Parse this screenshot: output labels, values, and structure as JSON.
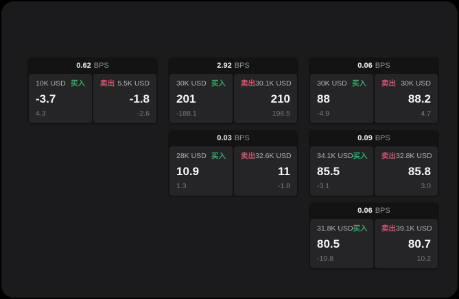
{
  "colors": {
    "background": "#000000",
    "panel": "#1b1b1d",
    "card": "#131314",
    "side_panel": "#252528",
    "buy_green": "#3aa568",
    "sell_red": "#c9566b",
    "value_white": "#f5f5f6",
    "label_gray": "#b2b2b5",
    "delta_gray": "#7b7b7f"
  },
  "cards": [
    {
      "bps": "0.62",
      "bps_unit": "BPS",
      "buy": {
        "side": "买入",
        "amount": "10K USD",
        "value": "-3.7",
        "delta": "4.3"
      },
      "sell": {
        "side": "卖出",
        "amount": "5.5K USD",
        "value": "-1.8",
        "delta": "-2.6"
      }
    },
    {
      "bps": "2.92",
      "bps_unit": "BPS",
      "buy": {
        "side": "买入",
        "amount": "30K USD",
        "value": "201",
        "delta": "-188.1"
      },
      "sell": {
        "side": "卖出",
        "amount": "30.1K USD",
        "value": "210",
        "delta": "196.5"
      }
    },
    {
      "bps": "0.06",
      "bps_unit": "BPS",
      "buy": {
        "side": "买入",
        "amount": "30K USD",
        "value": "88",
        "delta": "-4.9"
      },
      "sell": {
        "side": "卖出",
        "amount": "30K USD",
        "value": "88.2",
        "delta": "4.7"
      }
    },
    {
      "bps": "0.03",
      "bps_unit": "BPS",
      "buy": {
        "side": "买入",
        "amount": "28K USD",
        "value": "10.9",
        "delta": "1.3"
      },
      "sell": {
        "side": "卖出",
        "amount": "32.6K USD",
        "value": "11",
        "delta": "-1.8"
      }
    },
    {
      "bps": "0.09",
      "bps_unit": "BPS",
      "buy": {
        "side": "买入",
        "amount": "34.1K USD",
        "value": "85.5",
        "delta": "-3.1"
      },
      "sell": {
        "side": "卖出",
        "amount": "32.8K USD",
        "value": "85.8",
        "delta": "3.0"
      }
    },
    {
      "bps": "0.06",
      "bps_unit": "BPS",
      "buy": {
        "side": "买入",
        "amount": "31.8K USD",
        "value": "80.5",
        "delta": "-10.8"
      },
      "sell": {
        "side": "卖出",
        "amount": "39.1K USD",
        "value": "80.7",
        "delta": "10.2"
      }
    }
  ]
}
